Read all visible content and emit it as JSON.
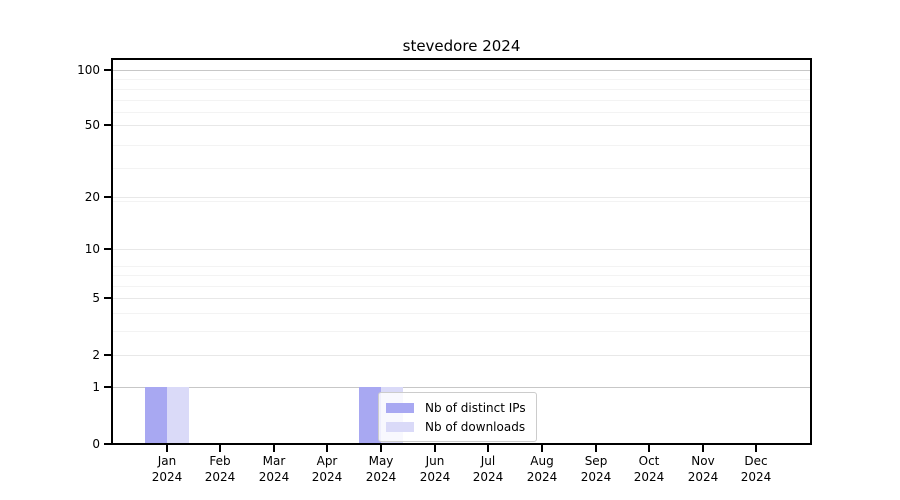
{
  "chart_data": {
    "type": "bar",
    "title": "stevedore 2024",
    "categories": [
      "Jan 2024",
      "Feb 2024",
      "Mar 2024",
      "Apr 2024",
      "May 2024",
      "Jun 2024",
      "Jul 2024",
      "Aug 2024",
      "Sep 2024",
      "Oct 2024",
      "Nov 2024",
      "Dec 2024"
    ],
    "months": [
      "Jan",
      "Feb",
      "Mar",
      "Apr",
      "May",
      "Jun",
      "Jul",
      "Aug",
      "Sep",
      "Oct",
      "Nov",
      "Dec"
    ],
    "year_label": "2024",
    "series": [
      {
        "name": "Nb of distinct IPs",
        "color": "#a8a8f2",
        "values": [
          1,
          0,
          0,
          0,
          1,
          0,
          0,
          0,
          0,
          0,
          0,
          0
        ]
      },
      {
        "name": "Nb of downloads",
        "color": "#dadaf8",
        "values": [
          1,
          0,
          0,
          0,
          1,
          0,
          0,
          0,
          0,
          0,
          0,
          0
        ]
      }
    ],
    "y_ticks": [
      0,
      1,
      2,
      5,
      10,
      20,
      50,
      100
    ],
    "y_scale": "log(1+y)",
    "ylim": [
      0,
      113
    ],
    "xlabel": "",
    "ylabel": "",
    "grid": "horizontal",
    "legend_position": "inside plot, lower area overlapping May bars",
    "colors": {
      "major_gridline_strong": "#c7c7c7",
      "major_gridline": "#e8e8e8",
      "minor_gridline": "#f3f3f3",
      "axis": "#000000"
    }
  }
}
